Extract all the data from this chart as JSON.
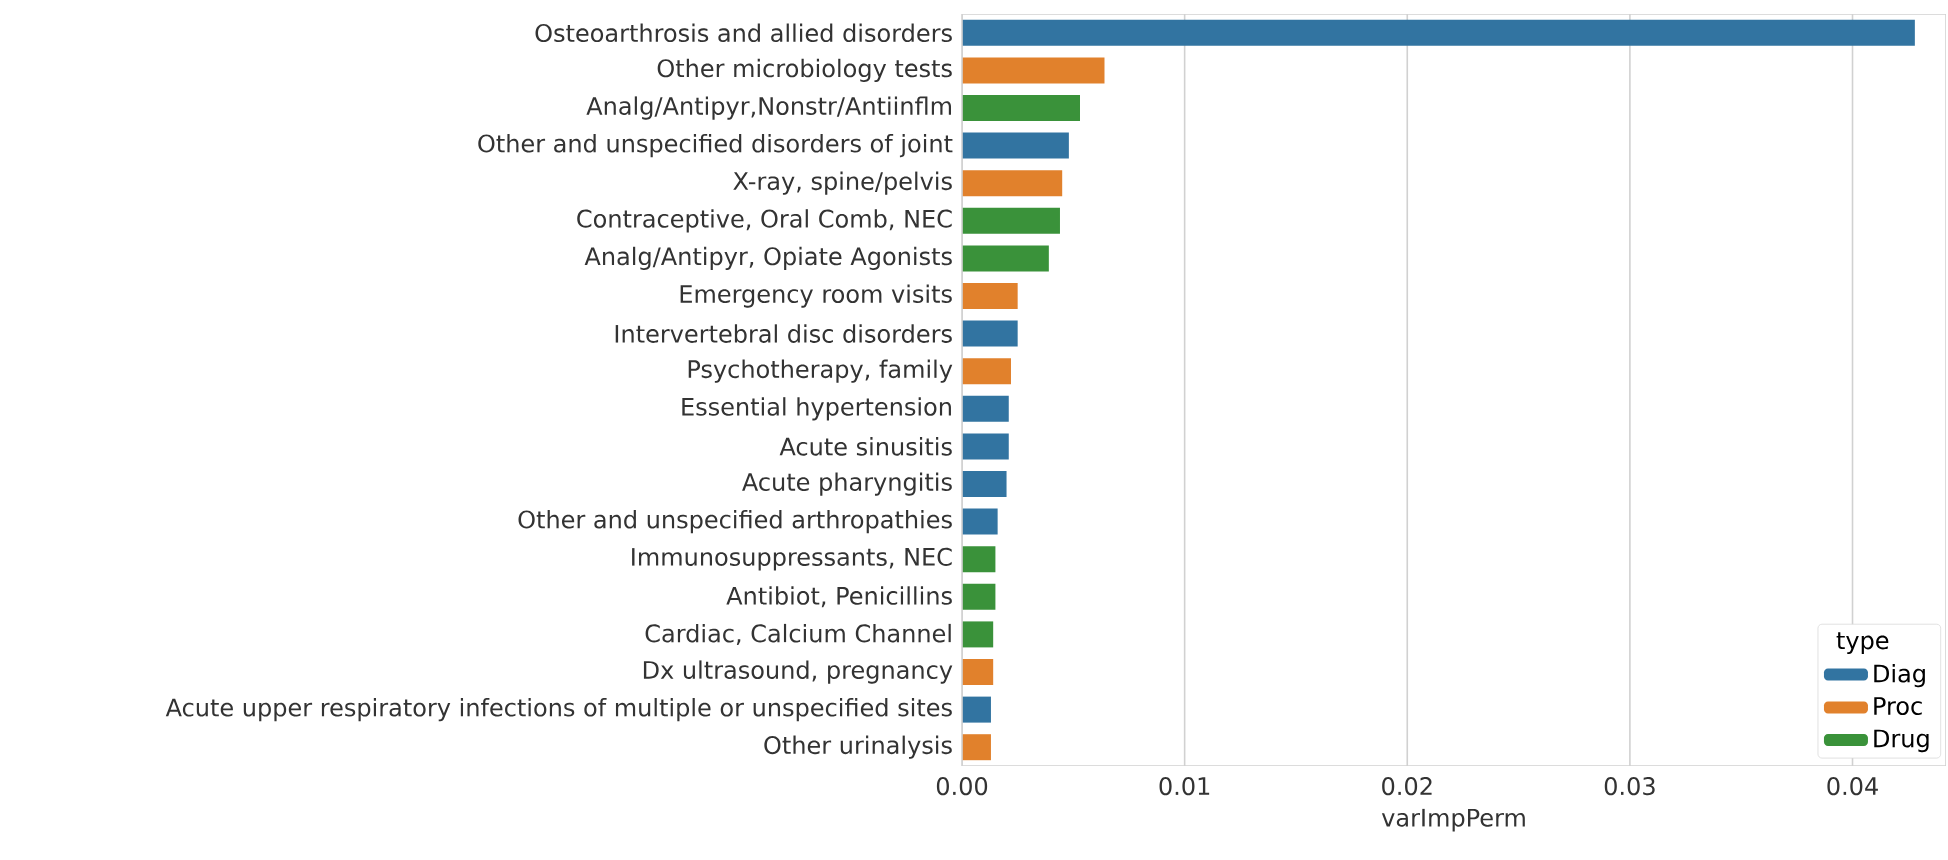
{
  "chart_data": {
    "type": "bar",
    "orientation": "horizontal",
    "xlabel": "varImpPerm",
    "legend_title": "type",
    "legend": "bottom right",
    "grid": "x",
    "categories": [
      "Osteoarthrosis and allied disorders",
      "Other microbiology tests",
      "Analg/Antipyr,Nonstr/Antiinflm",
      "Other and unspecified disorders of joint",
      "X-ray, spine/pelvis",
      "Contraceptive, Oral Comb, NEC",
      "Analg/Antipyr, Opiate Agonists",
      "Emergency room visits",
      "Intervertebral disc disorders",
      "Psychotherapy, family",
      "Essential hypertension",
      "Acute sinusitis",
      "Acute pharyngitis",
      "Other and unspecified arthropathies",
      "Immunosuppressants, NEC",
      "Antibiot, Penicillins",
      "Cardiac, Calcium Channel",
      "Dx ultrasound, pregnancy",
      "Acute upper respiratory infections of multiple or unspecified sites",
      "Other urinalysis"
    ],
    "series": [
      {
        "name": "Diag",
        "color": "#3274a1",
        "values": [
          0.0428,
          null,
          null,
          0.0048,
          null,
          null,
          null,
          null,
          0.0025,
          null,
          0.0021,
          0.0021,
          0.002,
          0.0016,
          null,
          null,
          null,
          null,
          0.0013,
          null
        ]
      },
      {
        "name": "Proc",
        "color": "#e1812c",
        "values": [
          null,
          0.0064,
          null,
          null,
          0.0045,
          null,
          null,
          0.0025,
          null,
          0.0022,
          null,
          null,
          null,
          null,
          null,
          null,
          null,
          0.0014,
          null,
          0.0013
        ]
      },
      {
        "name": "Drug",
        "color": "#3a923a",
        "values": [
          null,
          null,
          0.0053,
          null,
          null,
          0.0044,
          0.0039,
          null,
          null,
          null,
          null,
          null,
          null,
          null,
          0.0015,
          0.0015,
          0.0014,
          null,
          null,
          null
        ]
      }
    ],
    "xlim": [
      0,
      0.0442
    ],
    "xticks": [
      {
        "value": 0,
        "label": "0.00"
      },
      {
        "value": 0.01,
        "label": "0.01"
      },
      {
        "value": 0.02,
        "label": "0.02"
      },
      {
        "value": 0.03,
        "label": "0.03"
      },
      {
        "value": 0.04,
        "label": "0.04"
      }
    ]
  }
}
